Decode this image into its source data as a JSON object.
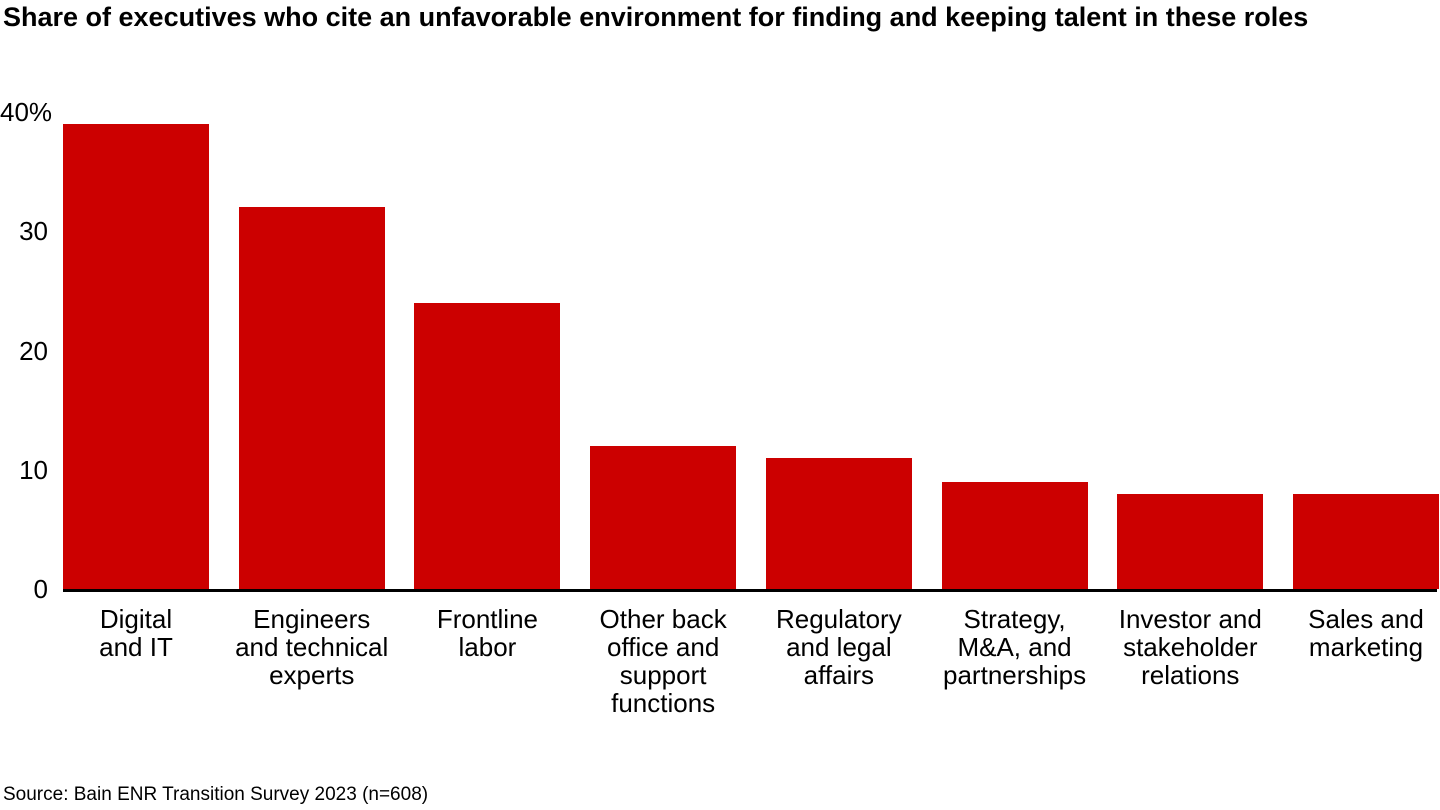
{
  "title": "Share of executives who cite an unfavorable environment for finding and keeping talent in these roles",
  "source_note": "Source: Bain ENR Transition Survey 2023 (n=608)",
  "colors": {
    "bar": "#CC0000",
    "axis": "#000000",
    "text": "#000000",
    "background": "#FFFFFF"
  },
  "chart_data": {
    "type": "bar",
    "title": "Share of executives who cite an unfavorable environment for finding and keeping talent in these roles",
    "categories": [
      "Digital and IT",
      "Engineers and technical experts",
      "Frontline labor",
      "Other back office and support functions",
      "Regulatory and legal affairs",
      "Strategy, M&A, and partnerships",
      "Investor and stakeholder relations",
      "Sales and marketing"
    ],
    "category_label_lines": [
      "Digital\nand IT",
      "Engineers\nand technical\nexperts",
      "Frontline\nlabor",
      "Other back\noffice and\nsupport\nfunctions",
      "Regulatory\nand legal\naffairs",
      "Strategy,\nM&A, and\npartnerships",
      "Investor and\nstakeholder\nrelations",
      "Sales and\nmarketing"
    ],
    "values": [
      39,
      32,
      24,
      12,
      11,
      9,
      8,
      8
    ],
    "unit": "%",
    "xlabel": "",
    "ylabel": "",
    "ylim": [
      0,
      40
    ],
    "y_tick_values": [
      40,
      30,
      20,
      10,
      0
    ],
    "y_tick_labels": [
      "40%",
      "30",
      "20",
      "10",
      "0"
    ],
    "grid": false,
    "legend": "none",
    "bar_color": "#CC0000",
    "source": "Source: Bain ENR Transition Survey 2023 (n=608)"
  }
}
